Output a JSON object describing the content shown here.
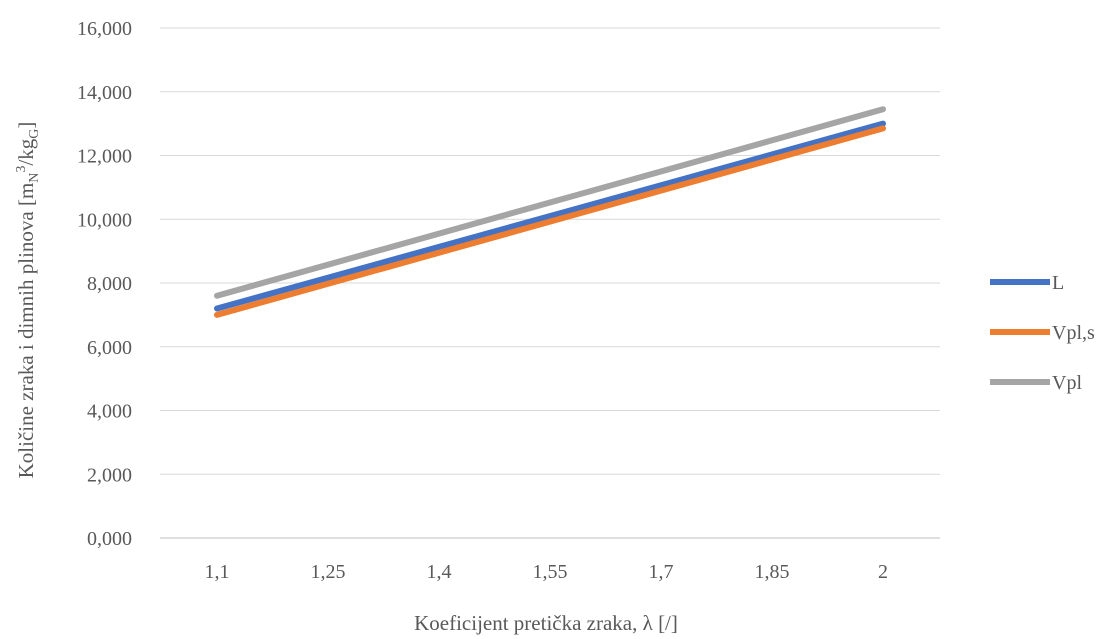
{
  "chart_data": {
    "type": "line",
    "title": "",
    "xlabel": "Koeficijent pretička zraka, λ [/]",
    "ylabel": {
      "main": "Količine zraka i dimnih plinova [m",
      "sub1": "N",
      "sup": "3",
      "mid": "/kg",
      "sub2": "G",
      "end": "]"
    },
    "categories": [
      "1,1",
      "1,25",
      "1,4",
      "1,55",
      "1,7",
      "1,85",
      "2"
    ],
    "x": [
      1.1,
      1.25,
      1.4,
      1.55,
      1.7,
      1.85,
      2.0
    ],
    "ylim": [
      0,
      16
    ],
    "yticks": [
      0,
      2,
      4,
      6,
      8,
      10,
      12,
      14,
      16
    ],
    "ytick_labels": [
      "0,000",
      "2,000",
      "4,000",
      "6,000",
      "8,000",
      "10,000",
      "12,000",
      "14,000",
      "16,000"
    ],
    "grid": true,
    "legend_position": "right",
    "series": [
      {
        "name": "L",
        "color": "#4472C4",
        "x": [
          1.1,
          2.0
        ],
        "values": [
          7.2,
          13.0
        ]
      },
      {
        "name": "Vpl,s",
        "color": "#ED7D31",
        "x": [
          1.1,
          2.0
        ],
        "values": [
          7.0,
          12.85
        ]
      },
      {
        "name": "Vpl",
        "color": "#A5A5A5",
        "x": [
          1.1,
          2.0
        ],
        "values": [
          7.6,
          13.45
        ]
      }
    ]
  }
}
